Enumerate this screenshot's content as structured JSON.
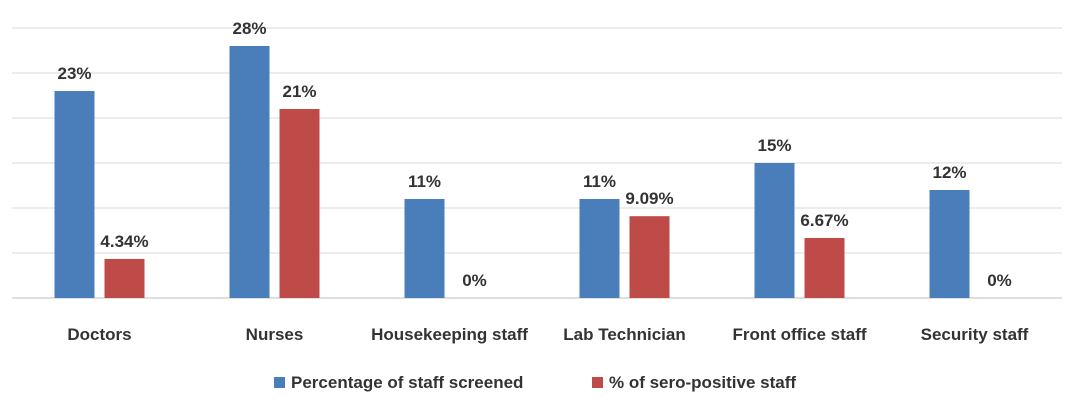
{
  "chart_data": {
    "type": "bar",
    "categories": [
      "Doctors",
      "Nurses",
      "Housekeeping staff",
      "Lab Technician",
      "Front office staff",
      "Security staff"
    ],
    "series": [
      {
        "name": "Percentage of staff screened",
        "color": "#4a7ebb",
        "values": [
          23,
          28,
          11,
          11,
          15,
          12
        ],
        "labels": [
          "23%",
          "28%",
          "11%",
          "11%",
          "15%",
          "12%"
        ]
      },
      {
        "name": "% of sero-positive staff",
        "color": "#be4b48",
        "values": [
          4.34,
          21,
          0,
          9.09,
          6.67,
          0
        ],
        "labels": [
          "4.34%",
          "21%",
          "0%",
          "9.09%",
          "6.67%",
          "0%"
        ]
      }
    ],
    "ylim": [
      0,
      30
    ],
    "grid": true,
    "legend_position": "bottom"
  }
}
